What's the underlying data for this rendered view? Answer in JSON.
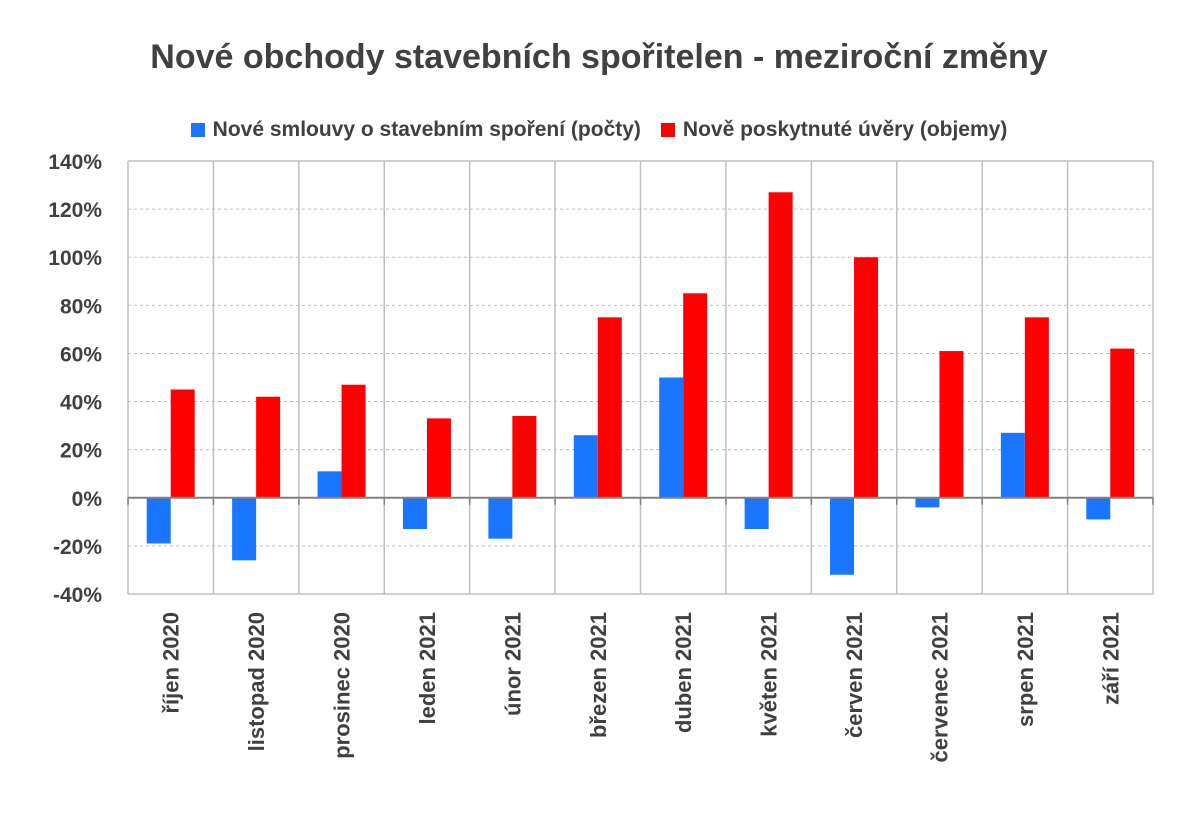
{
  "chart_data": {
    "type": "bar",
    "title": "Nové obchody stavebních spořitelen - meziroční změny",
    "categories": [
      "říjen 2020",
      "listopad 2020",
      "prosinec 2020",
      "leden 2021",
      "únor 2021",
      "březen 2021",
      "duben 2021",
      "květen 2021",
      "červen 2021",
      "červenec 2021",
      "srpen 2021",
      "září 2021"
    ],
    "series": [
      {
        "name": "Nové smlouvy o stavebním spoření (počty)",
        "color": "#1a75ff",
        "values": [
          -19,
          -26,
          11,
          -13,
          -17,
          26,
          50,
          -13,
          -32,
          -4,
          27,
          -9
        ]
      },
      {
        "name": "Nově poskytnuté úvěry (objemy)",
        "color": "#ff0000",
        "values": [
          45,
          42,
          47,
          33,
          34,
          75,
          85,
          127,
          100,
          61,
          75,
          62
        ]
      }
    ],
    "ylim": [
      -40,
      140
    ],
    "yticks": [
      "140%",
      "120%",
      "100%",
      "80%",
      "60%",
      "40%",
      "20%",
      "0%",
      "-20%",
      "-40%"
    ],
    "ytick_values": [
      140,
      120,
      100,
      80,
      60,
      40,
      20,
      0,
      -20,
      -40
    ],
    "legend_position": "top",
    "grid": true
  }
}
